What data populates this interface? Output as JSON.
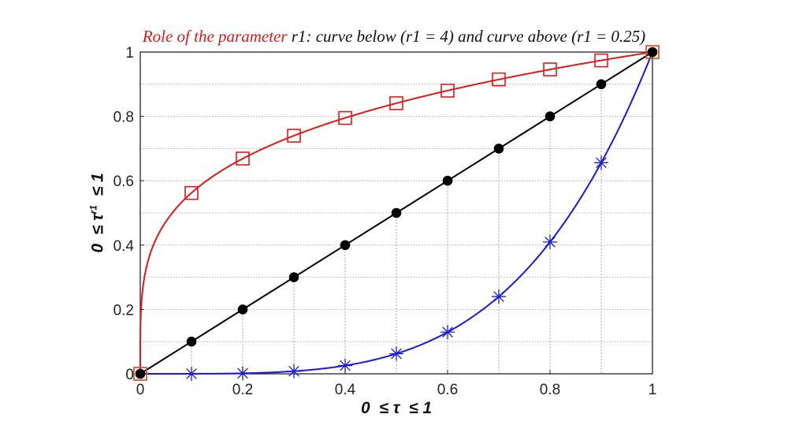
{
  "chart_data": {
    "type": "line",
    "title_red": "Role of the parameter",
    "title_black": "r1: curve below (r1 = 4) and curve above (r1 = 0.25)",
    "xlabel": "0  ≤ τ  ≤ 1",
    "ylabel": "0  ≤ τ",
    "ylabel_exponent": "r1",
    "ylabel_tail": "  ≤ 1",
    "xlim": [
      0,
      1
    ],
    "ylim": [
      0,
      1
    ],
    "x_ticks": [
      "0",
      "0.2",
      "0.4",
      "0.6",
      "0.8",
      "1"
    ],
    "y_ticks": [
      "0",
      "0.2",
      "0.4",
      "0.6",
      "0.8",
      "1"
    ],
    "grid": true,
    "series": [
      {
        "color": "#e01919",
        "marker": "square",
        "x": [
          0,
          0.1,
          0.2,
          0.3,
          0.4,
          0.5,
          0.6,
          0.7,
          0.8,
          0.9,
          1
        ],
        "y": [
          0,
          0.562,
          0.669,
          0.74,
          0.795,
          0.841,
          0.88,
          0.915,
          0.946,
          0.974,
          1
        ]
      },
      {
        "color": "#000000",
        "marker": "circle",
        "x": [
          0,
          0.1,
          0.2,
          0.3,
          0.4,
          0.5,
          0.6,
          0.7,
          0.8,
          0.9,
          1
        ],
        "y": [
          0,
          0.1,
          0.2,
          0.3,
          0.4,
          0.5,
          0.6,
          0.7,
          0.8,
          0.9,
          1
        ]
      },
      {
        "color": "#1a1ad6",
        "marker": "asterisk",
        "x": [
          0,
          0.1,
          0.2,
          0.3,
          0.4,
          0.5,
          0.6,
          0.7,
          0.8,
          0.9,
          1
        ],
        "y": [
          0,
          0.0001,
          0.0016,
          0.0081,
          0.0256,
          0.0625,
          0.1296,
          0.2401,
          0.4096,
          0.6561,
          1
        ]
      }
    ]
  }
}
